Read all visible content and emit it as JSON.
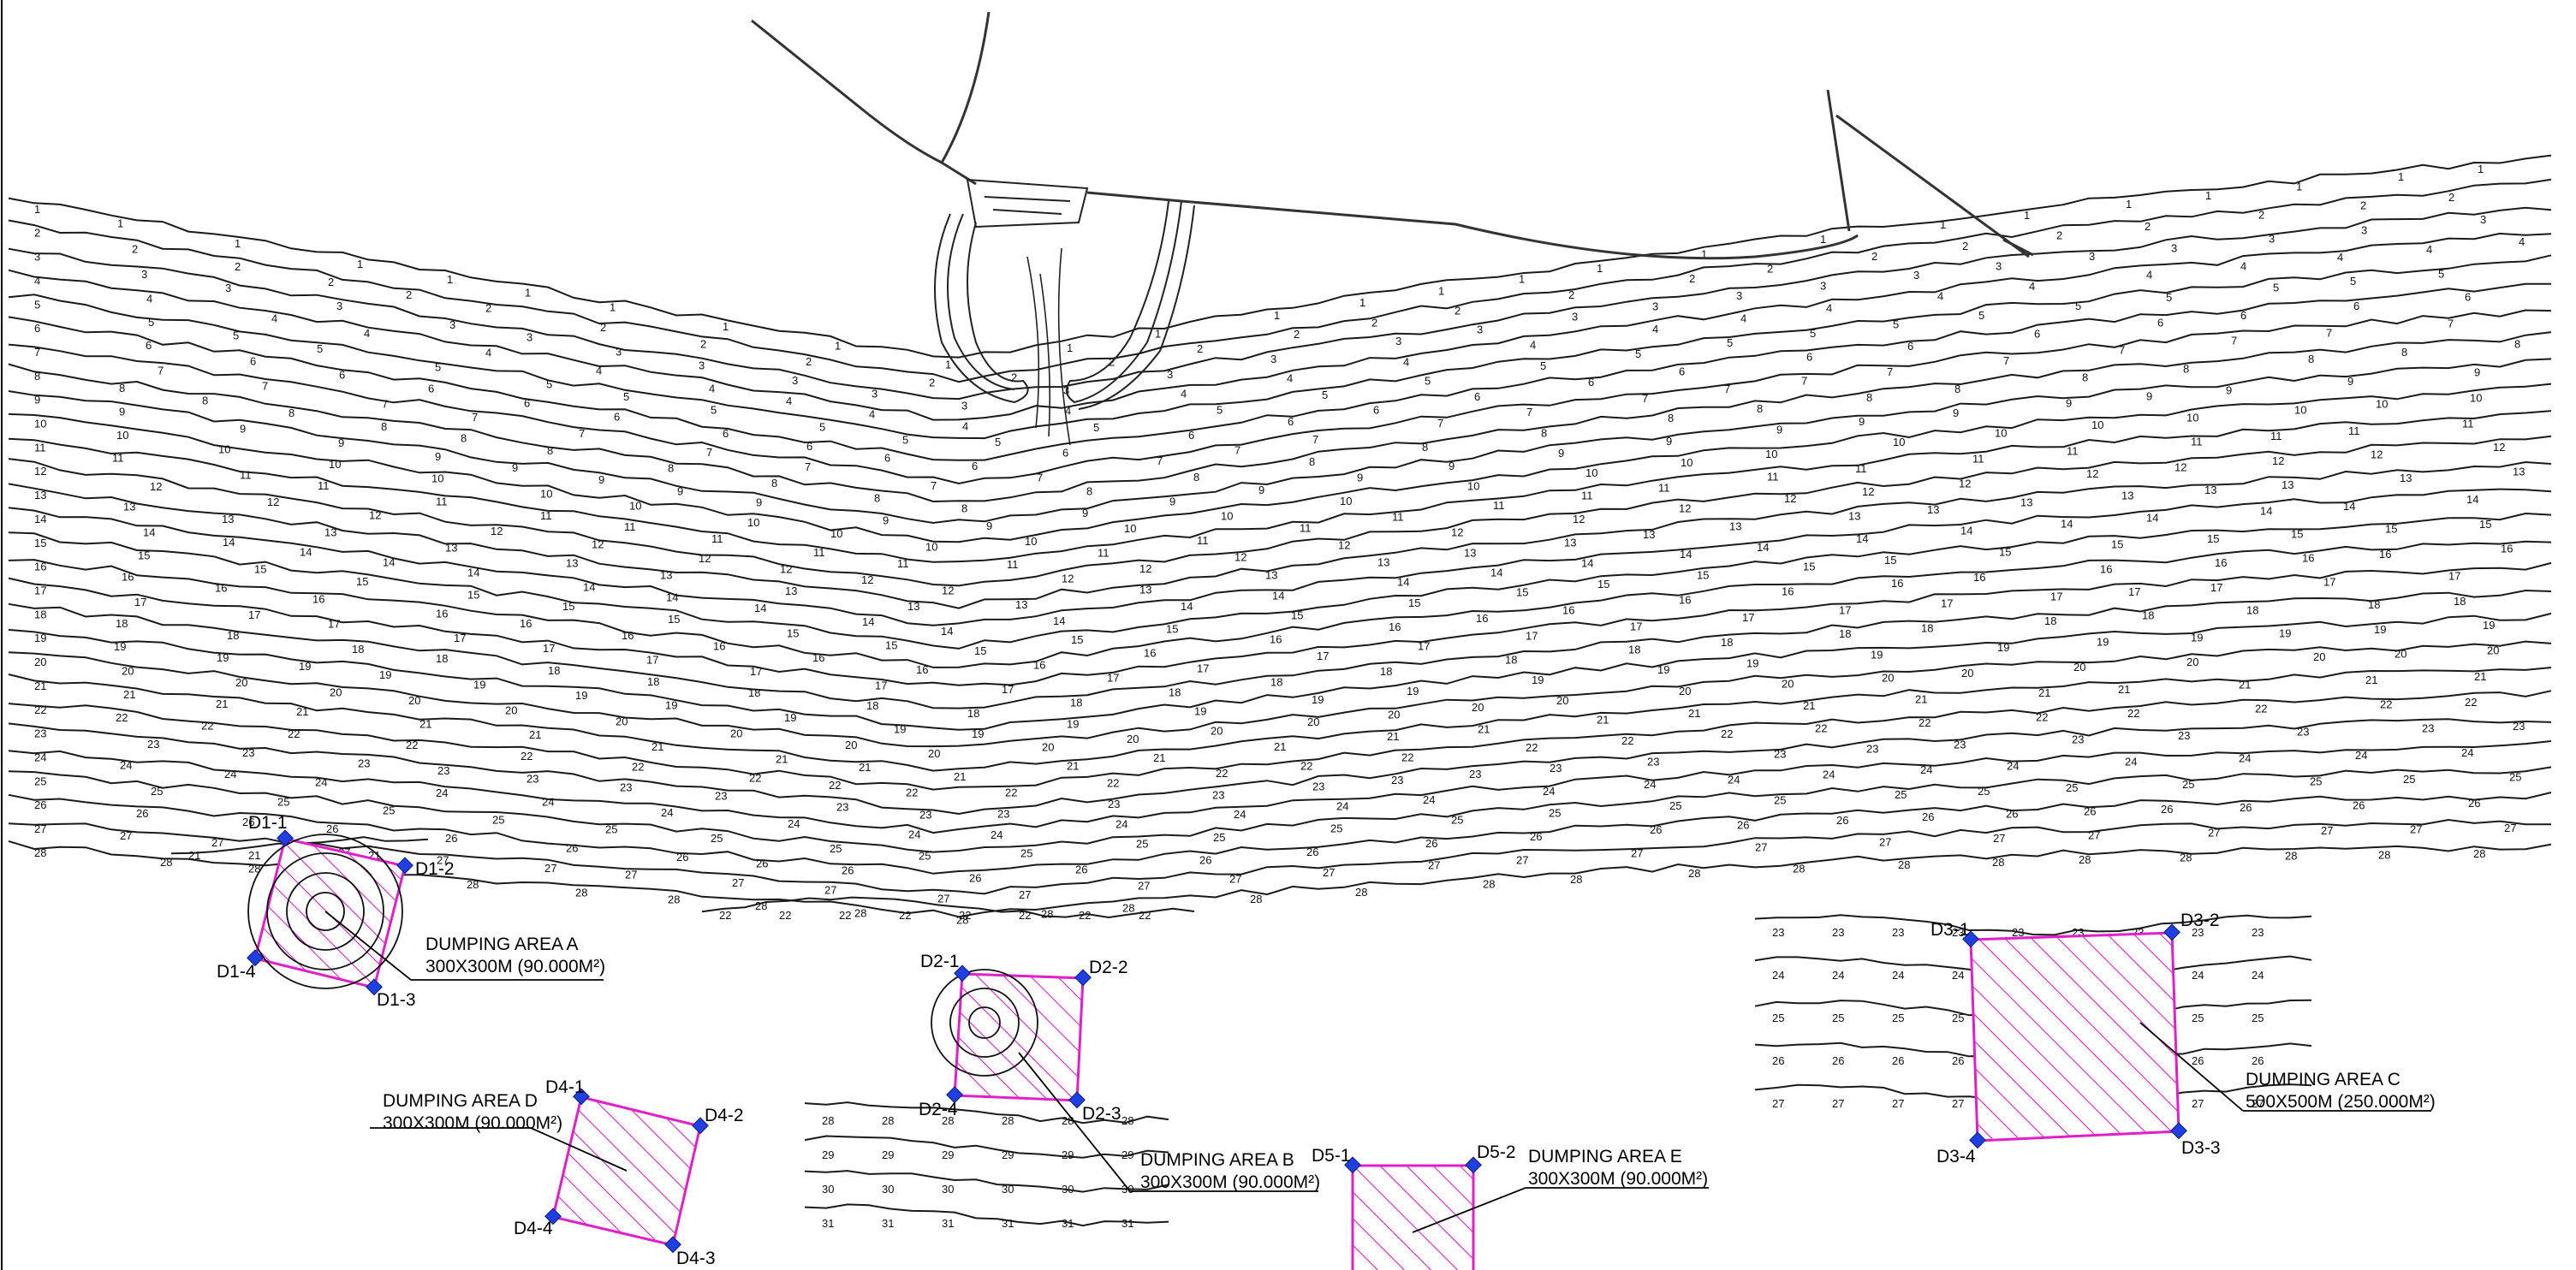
{
  "areas": [
    {
      "id": "A",
      "title": "DUMPING AREA A",
      "size": "300X300M (90.000M²)",
      "corners": [
        "D1-1",
        "D1-2",
        "D1-3",
        "D1-4"
      ]
    },
    {
      "id": "B",
      "title": "DUMPING AREA B",
      "size": "300X300M (90.000M²)",
      "corners": [
        "D2-1",
        "D2-2",
        "D2-3",
        "D2-4"
      ]
    },
    {
      "id": "C",
      "title": "DUMPING AREA C",
      "size": "500X500M (250.000M²)",
      "corners": [
        "D3-1",
        "D3-2",
        "D3-3",
        "D3-4"
      ]
    },
    {
      "id": "D",
      "title": "DUMPING AREA D",
      "size": "300X300M (90.000M²)",
      "corners": [
        "D4-1",
        "D4-2",
        "D4-3",
        "D4-4"
      ]
    },
    {
      "id": "E",
      "title": "DUMPING AREA E",
      "size": "300X300M (90.000M²)",
      "corners": [
        "D5-1",
        "D5-2"
      ]
    }
  ],
  "depth_labels": [
    "1",
    "2",
    "3",
    "4",
    "5",
    "6",
    "7",
    "8",
    "9",
    "10",
    "11",
    "12",
    "13",
    "14",
    "15",
    "16",
    "17",
    "18",
    "19",
    "20",
    "21",
    "22",
    "23",
    "24",
    "25",
    "26",
    "27",
    "28",
    "29",
    "30",
    "31"
  ],
  "colors": {
    "area_outline": "#e020c8",
    "area_hatch": "#e020c8",
    "corner_marker": "#1f3fe0",
    "contour": "#1a1a1a"
  }
}
